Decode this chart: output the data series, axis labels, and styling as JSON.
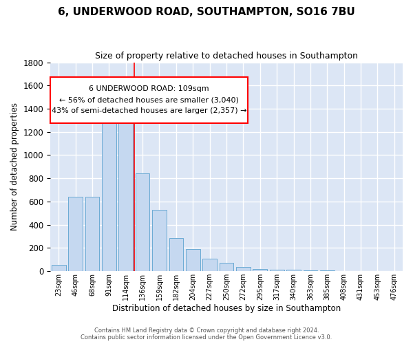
{
  "title": "6, UNDERWOOD ROAD, SOUTHAMPTON, SO16 7BU",
  "subtitle": "Size of property relative to detached houses in Southampton",
  "xlabel": "Distribution of detached houses by size in Southampton",
  "ylabel": "Number of detached properties",
  "categories": [
    "23sqm",
    "46sqm",
    "68sqm",
    "91sqm",
    "114sqm",
    "136sqm",
    "159sqm",
    "182sqm",
    "204sqm",
    "227sqm",
    "250sqm",
    "272sqm",
    "295sqm",
    "317sqm",
    "340sqm",
    "363sqm",
    "385sqm",
    "408sqm",
    "431sqm",
    "453sqm",
    "476sqm"
  ],
  "bar_values": [
    55,
    640,
    640,
    1305,
    1375,
    845,
    530,
    285,
    190,
    110,
    70,
    35,
    20,
    15,
    10,
    8,
    5,
    3,
    2,
    1,
    1
  ],
  "bar_color": "#c5d8f0",
  "bar_edge_color": "#6aaad4",
  "bg_color": "#dce6f5",
  "grid_color": "#ffffff",
  "red_line_x": 4.5,
  "annotation_title": "6 UNDERWOOD ROAD: 109sqm",
  "annotation_line1": "← 56% of detached houses are smaller (3,040)",
  "annotation_line2": "43% of semi-detached houses are larger (2,357) →",
  "footer1": "Contains HM Land Registry data © Crown copyright and database right 2024.",
  "footer2": "Contains public sector information licensed under the Open Government Licence v3.0.",
  "ylim": [
    0,
    1800
  ],
  "fig_width": 6.0,
  "fig_height": 5.0,
  "dpi": 100
}
